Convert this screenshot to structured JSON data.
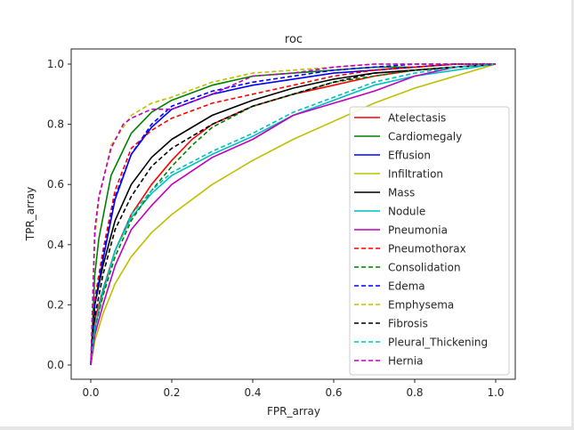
{
  "chart_data": {
    "type": "line",
    "title": "roc",
    "xlabel": "FPR_array",
    "ylabel": "TPR_array",
    "xlim": [
      -0.05,
      1.05
    ],
    "ylim": [
      -0.05,
      1.05
    ],
    "xticks": [
      "0.0",
      "0.2",
      "0.4",
      "0.6",
      "0.8",
      "1.0"
    ],
    "yticks": [
      "0.0",
      "0.2",
      "0.4",
      "0.6",
      "0.8",
      "1.0"
    ],
    "grid": false,
    "legend_position": "lower-right",
    "series": [
      {
        "name": "Atelectasis",
        "color": "#ff0000",
        "dash": false,
        "x": [
          0,
          0.01,
          0.03,
          0.06,
          0.1,
          0.15,
          0.2,
          0.25,
          0.3,
          0.4,
          0.5,
          0.6,
          0.7,
          0.8,
          0.9,
          1.0
        ],
        "y": [
          0,
          0.15,
          0.25,
          0.38,
          0.5,
          0.6,
          0.68,
          0.75,
          0.8,
          0.86,
          0.9,
          0.93,
          0.96,
          0.98,
          0.99,
          1.0
        ]
      },
      {
        "name": "Cardiomegaly",
        "color": "#008000",
        "dash": false,
        "x": [
          0,
          0.01,
          0.02,
          0.05,
          0.1,
          0.15,
          0.2,
          0.3,
          0.4,
          0.5,
          0.6,
          0.7,
          0.8,
          0.9,
          1.0
        ],
        "y": [
          0,
          0.3,
          0.42,
          0.63,
          0.77,
          0.84,
          0.88,
          0.93,
          0.96,
          0.97,
          0.98,
          0.99,
          0.99,
          1.0,
          1.0
        ]
      },
      {
        "name": "Effusion",
        "color": "#0000ff",
        "dash": false,
        "x": [
          0,
          0.01,
          0.03,
          0.06,
          0.1,
          0.15,
          0.2,
          0.3,
          0.4,
          0.5,
          0.6,
          0.7,
          0.8,
          0.9,
          1.0
        ],
        "y": [
          0,
          0.2,
          0.35,
          0.55,
          0.7,
          0.79,
          0.85,
          0.9,
          0.93,
          0.95,
          0.97,
          0.98,
          0.99,
          1.0,
          1.0
        ]
      },
      {
        "name": "Infiltration",
        "color": "#bfbf00",
        "dash": false,
        "x": [
          0,
          0.01,
          0.03,
          0.06,
          0.1,
          0.15,
          0.2,
          0.3,
          0.4,
          0.5,
          0.6,
          0.7,
          0.8,
          0.9,
          1.0
        ],
        "y": [
          0,
          0.08,
          0.17,
          0.27,
          0.36,
          0.44,
          0.5,
          0.6,
          0.68,
          0.75,
          0.81,
          0.87,
          0.92,
          0.96,
          1.0
        ]
      },
      {
        "name": "Mass",
        "color": "#000000",
        "dash": false,
        "x": [
          0,
          0.01,
          0.03,
          0.06,
          0.1,
          0.15,
          0.2,
          0.3,
          0.4,
          0.5,
          0.6,
          0.7,
          0.8,
          0.9,
          1.0
        ],
        "y": [
          0,
          0.2,
          0.33,
          0.48,
          0.6,
          0.69,
          0.75,
          0.83,
          0.88,
          0.92,
          0.95,
          0.97,
          0.98,
          0.99,
          1.0
        ]
      },
      {
        "name": "Nodule",
        "color": "#00bfbf",
        "dash": false,
        "x": [
          0,
          0.01,
          0.03,
          0.06,
          0.1,
          0.15,
          0.2,
          0.3,
          0.4,
          0.5,
          0.6,
          0.7,
          0.8,
          0.9,
          1.0
        ],
        "y": [
          0,
          0.12,
          0.24,
          0.38,
          0.49,
          0.57,
          0.63,
          0.7,
          0.76,
          0.83,
          0.88,
          0.93,
          0.96,
          0.98,
          1.0
        ]
      },
      {
        "name": "Pneumonia",
        "color": "#bf00bf",
        "dash": false,
        "x": [
          0,
          0.01,
          0.03,
          0.06,
          0.1,
          0.15,
          0.2,
          0.3,
          0.4,
          0.5,
          0.6,
          0.7,
          0.8,
          0.9,
          1.0
        ],
        "y": [
          0,
          0.1,
          0.2,
          0.33,
          0.45,
          0.53,
          0.6,
          0.69,
          0.75,
          0.83,
          0.87,
          0.91,
          0.96,
          0.99,
          1.0
        ]
      },
      {
        "name": "Pneumothorax",
        "color": "#ff0000",
        "dash": true,
        "x": [
          0,
          0.01,
          0.03,
          0.06,
          0.1,
          0.15,
          0.2,
          0.3,
          0.4,
          0.5,
          0.6,
          0.7,
          0.8,
          0.9,
          1.0
        ],
        "y": [
          0,
          0.22,
          0.38,
          0.58,
          0.72,
          0.78,
          0.82,
          0.87,
          0.9,
          0.93,
          0.96,
          0.98,
          0.99,
          1.0,
          1.0
        ]
      },
      {
        "name": "Consolidation",
        "color": "#008000",
        "dash": true,
        "x": [
          0,
          0.01,
          0.03,
          0.06,
          0.1,
          0.15,
          0.2,
          0.25,
          0.3,
          0.4,
          0.5,
          0.6,
          0.7,
          0.8,
          0.9,
          1.0
        ],
        "y": [
          0,
          0.12,
          0.23,
          0.36,
          0.48,
          0.58,
          0.66,
          0.73,
          0.79,
          0.86,
          0.9,
          0.94,
          0.96,
          0.98,
          0.99,
          1.0
        ]
      },
      {
        "name": "Edema",
        "color": "#0000ff",
        "dash": true,
        "x": [
          0,
          0.01,
          0.03,
          0.06,
          0.1,
          0.15,
          0.2,
          0.3,
          0.4,
          0.5,
          0.6,
          0.7,
          0.8,
          0.9,
          1.0
        ],
        "y": [
          0,
          0.2,
          0.36,
          0.56,
          0.7,
          0.8,
          0.86,
          0.91,
          0.94,
          0.96,
          0.98,
          0.99,
          1.0,
          1.0,
          1.0
        ]
      },
      {
        "name": "Emphysema",
        "color": "#bfbf00",
        "dash": true,
        "x": [
          0,
          0.01,
          0.02,
          0.05,
          0.1,
          0.15,
          0.2,
          0.3,
          0.4,
          0.5,
          0.6,
          0.7,
          0.8,
          0.9,
          1.0
        ],
        "y": [
          0,
          0.42,
          0.55,
          0.73,
          0.83,
          0.87,
          0.89,
          0.94,
          0.97,
          0.98,
          0.99,
          1.0,
          1.0,
          1.0,
          1.0
        ]
      },
      {
        "name": "Fibrosis",
        "color": "#000000",
        "dash": true,
        "x": [
          0,
          0.01,
          0.03,
          0.06,
          0.1,
          0.15,
          0.2,
          0.3,
          0.4,
          0.5,
          0.6,
          0.7,
          0.8,
          0.9,
          1.0
        ],
        "y": [
          0,
          0.16,
          0.3,
          0.45,
          0.56,
          0.66,
          0.72,
          0.8,
          0.86,
          0.9,
          0.94,
          0.97,
          0.98,
          0.99,
          1.0
        ]
      },
      {
        "name": "Pleural_Thickening",
        "color": "#00bfbf",
        "dash": true,
        "x": [
          0,
          0.01,
          0.03,
          0.06,
          0.1,
          0.15,
          0.2,
          0.3,
          0.4,
          0.5,
          0.6,
          0.7,
          0.8,
          0.9,
          1.0
        ],
        "y": [
          0,
          0.13,
          0.25,
          0.38,
          0.5,
          0.58,
          0.64,
          0.71,
          0.77,
          0.84,
          0.89,
          0.94,
          0.97,
          0.99,
          1.0
        ]
      },
      {
        "name": "Hernia",
        "color": "#bf00bf",
        "dash": true,
        "x": [
          0,
          0.01,
          0.02,
          0.05,
          0.08,
          0.1,
          0.15,
          0.2,
          0.3,
          0.4,
          0.5,
          0.6,
          0.7,
          0.8,
          0.9,
          1.0
        ],
        "y": [
          0,
          0.45,
          0.56,
          0.72,
          0.8,
          0.82,
          0.85,
          0.85,
          0.9,
          0.96,
          0.97,
          0.99,
          1.0,
          1.0,
          1.0,
          1.0
        ]
      }
    ]
  }
}
